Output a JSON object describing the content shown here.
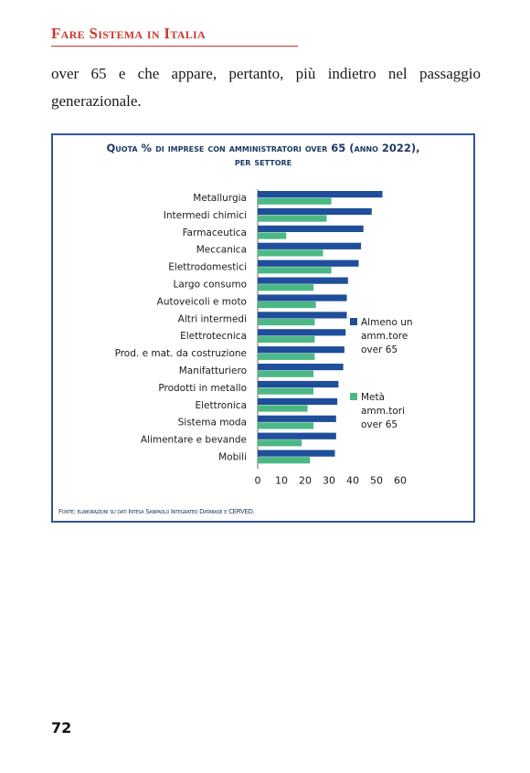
{
  "running_head": "Fare Sistema in Italia",
  "body_text": "over 65 e che appare, pertanto, più indietro nel passaggio generazionale.",
  "figure": {
    "title_line1": "Quota % di imprese con amministratori over 65 (anno 2022),",
    "title_line2": "per settore",
    "source": "Fonte: elaborazioni su dati Intesa Sanpaolo Integrated Database e CERVED."
  },
  "page_number": "72",
  "colors": {
    "accent_red": "#c8372d",
    "series_dark_blue": "#1f4e9a",
    "series_green": "#4cb886",
    "frame_blue": "#2f5597"
  },
  "chart_data": {
    "type": "bar",
    "orientation": "horizontal",
    "categories": [
      "Metallurgia",
      "Intermedi chimici",
      "Farmaceutica",
      "Meccanica",
      "Elettrodomestici",
      "Largo consumo",
      "Autoveicoli e moto",
      "Altri intermedi",
      "Elettrotecnica",
      "Prod. e mat. da costruzione",
      "Manifatturiero",
      "Prodotti in metallo",
      "Elettronica",
      "Sistema moda",
      "Alimentare e bevande",
      "Mobili"
    ],
    "series": [
      {
        "name": "Almeno un amm.tore over 65",
        "color": "#1f4e9a",
        "values": [
          52.5,
          48,
          44.5,
          43.5,
          42.5,
          38,
          37.5,
          37.5,
          37,
          36.5,
          36,
          34,
          33.5,
          33,
          33,
          32.5
        ]
      },
      {
        "name": "Metà amm.tori over 65",
        "color": "#4cb886",
        "values": [
          31,
          29,
          12,
          27.5,
          31,
          23.5,
          24.5,
          24,
          24,
          24,
          23.5,
          23.5,
          21,
          23.5,
          18.5,
          22
        ]
      }
    ],
    "x_ticks": [
      "0",
      "10",
      "20",
      "30",
      "40",
      "50",
      "60"
    ],
    "xlim": [
      0,
      60
    ],
    "grid": false,
    "legend_position": "right",
    "legend_entries": [
      "Almeno un amm.tore over 65",
      "Metà amm.tori over 65"
    ]
  }
}
